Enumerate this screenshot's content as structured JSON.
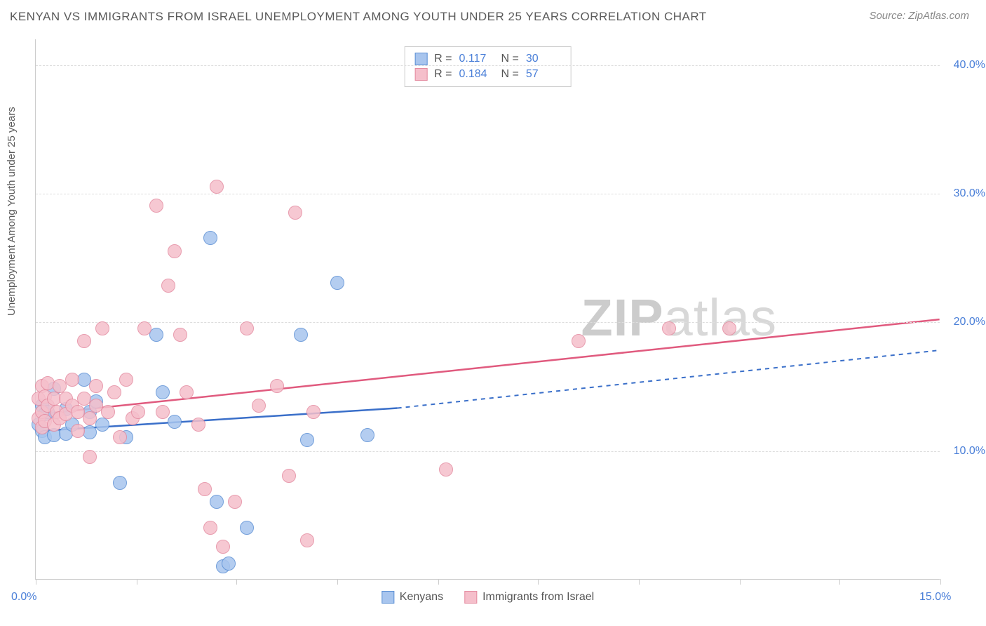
{
  "title": "KENYAN VS IMMIGRANTS FROM ISRAEL UNEMPLOYMENT AMONG YOUTH UNDER 25 YEARS CORRELATION CHART",
  "source": "Source: ZipAtlas.com",
  "ylabel": "Unemployment Among Youth under 25 years",
  "watermark_bold": "ZIP",
  "watermark_light": "atlas",
  "chart": {
    "type": "scatter",
    "background_color": "#ffffff",
    "grid_color": "#dddddd",
    "axis_color": "#cccccc",
    "text_color": "#5a5a5a",
    "tick_label_color": "#4a7fd8",
    "xlim": [
      0,
      15
    ],
    "ylim": [
      0,
      42
    ],
    "x_tick_positions": [
      0,
      1.67,
      3.33,
      5.0,
      6.67,
      8.33,
      10.0,
      11.67,
      13.33,
      15.0
    ],
    "x_tick_labels": {
      "0": "0.0%",
      "15": "15.0%"
    },
    "y_gridlines": [
      10,
      20,
      30,
      40
    ],
    "y_tick_labels": {
      "10": "10.0%",
      "20": "20.0%",
      "30": "30.0%",
      "40": "40.0%"
    },
    "point_radius": 10,
    "point_opacity_fill": 0.35,
    "point_border_width": 1.5,
    "series": [
      {
        "name": "Kenyans",
        "color_fill": "#a8c5ee",
        "color_border": "#5b8fd4",
        "R": "0.117",
        "N": "30",
        "trend": {
          "x0": 0,
          "y0": 11.5,
          "x1": 6.0,
          "y1": 13.3,
          "x2": 15.0,
          "y2": 17.8,
          "solid_color": "#3a6fc9",
          "dashed": true
        },
        "points": [
          [
            0.05,
            12.0
          ],
          [
            0.1,
            13.5
          ],
          [
            0.1,
            11.5
          ],
          [
            0.15,
            12.8
          ],
          [
            0.15,
            11.0
          ],
          [
            0.2,
            13.0
          ],
          [
            0.3,
            11.2
          ],
          [
            0.3,
            14.8
          ],
          [
            0.5,
            11.3
          ],
          [
            0.5,
            13.2
          ],
          [
            0.6,
            12.0
          ],
          [
            0.8,
            15.5
          ],
          [
            0.9,
            11.4
          ],
          [
            0.9,
            13.0
          ],
          [
            1.0,
            13.8
          ],
          [
            1.1,
            12.0
          ],
          [
            1.4,
            7.5
          ],
          [
            1.5,
            11.0
          ],
          [
            2.0,
            19.0
          ],
          [
            2.1,
            14.5
          ],
          [
            2.3,
            12.2
          ],
          [
            2.9,
            26.5
          ],
          [
            3.0,
            6.0
          ],
          [
            3.1,
            1.0
          ],
          [
            3.2,
            1.2
          ],
          [
            3.5,
            4.0
          ],
          [
            4.4,
            19.0
          ],
          [
            4.5,
            10.8
          ],
          [
            5.0,
            23.0
          ],
          [
            5.5,
            11.2
          ]
        ]
      },
      {
        "name": "Immigrants from Israel",
        "color_fill": "#f5bfcb",
        "color_border": "#e48ba0",
        "R": "0.184",
        "N": "57",
        "trend": {
          "x0": 0,
          "y0": 12.8,
          "x1": 15.0,
          "y1": 20.2,
          "solid_color": "#e05a7e",
          "dashed": false
        },
        "points": [
          [
            0.05,
            14.0
          ],
          [
            0.05,
            12.5
          ],
          [
            0.1,
            15.0
          ],
          [
            0.1,
            13.0
          ],
          [
            0.1,
            11.8
          ],
          [
            0.15,
            14.2
          ],
          [
            0.15,
            12.3
          ],
          [
            0.2,
            13.5
          ],
          [
            0.2,
            15.2
          ],
          [
            0.3,
            14.0
          ],
          [
            0.3,
            12.0
          ],
          [
            0.35,
            13.0
          ],
          [
            0.4,
            15.0
          ],
          [
            0.4,
            12.5
          ],
          [
            0.5,
            14.0
          ],
          [
            0.5,
            12.8
          ],
          [
            0.6,
            13.5
          ],
          [
            0.6,
            15.5
          ],
          [
            0.7,
            13.0
          ],
          [
            0.7,
            11.5
          ],
          [
            0.8,
            18.5
          ],
          [
            0.8,
            14.0
          ],
          [
            0.9,
            12.5
          ],
          [
            0.9,
            9.5
          ],
          [
            1.0,
            13.5
          ],
          [
            1.0,
            15.0
          ],
          [
            1.1,
            19.5
          ],
          [
            1.2,
            13.0
          ],
          [
            1.3,
            14.5
          ],
          [
            1.4,
            11.0
          ],
          [
            1.5,
            15.5
          ],
          [
            1.6,
            12.5
          ],
          [
            1.7,
            13.0
          ],
          [
            1.8,
            19.5
          ],
          [
            2.0,
            29.0
          ],
          [
            2.1,
            13.0
          ],
          [
            2.2,
            22.8
          ],
          [
            2.3,
            25.5
          ],
          [
            2.4,
            19.0
          ],
          [
            2.5,
            14.5
          ],
          [
            2.7,
            12.0
          ],
          [
            2.8,
            7.0
          ],
          [
            2.9,
            4.0
          ],
          [
            3.0,
            30.5
          ],
          [
            3.1,
            2.5
          ],
          [
            3.3,
            6.0
          ],
          [
            3.5,
            19.5
          ],
          [
            3.7,
            13.5
          ],
          [
            4.0,
            15.0
          ],
          [
            4.2,
            8.0
          ],
          [
            4.3,
            28.5
          ],
          [
            4.5,
            3.0
          ],
          [
            4.6,
            13.0
          ],
          [
            6.8,
            8.5
          ],
          [
            9.0,
            18.5
          ],
          [
            10.5,
            19.5
          ],
          [
            11.5,
            19.5
          ]
        ]
      }
    ]
  },
  "legend_stats_labels": {
    "R": "R  =",
    "N": "N  ="
  }
}
